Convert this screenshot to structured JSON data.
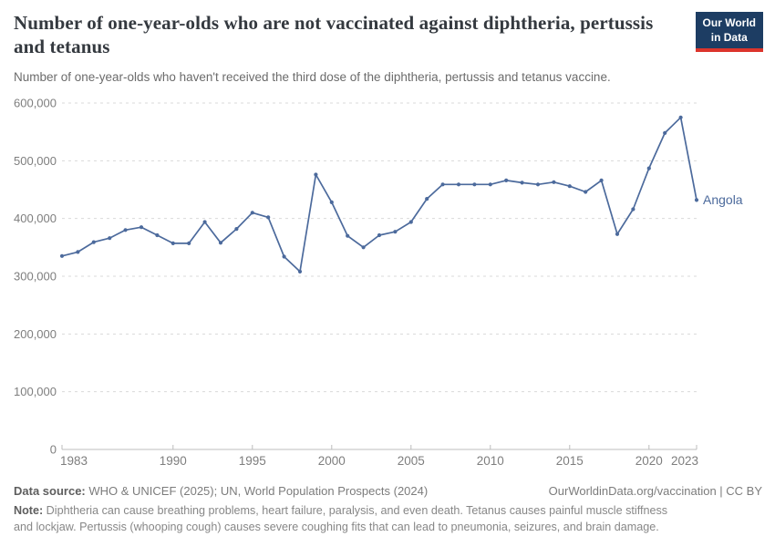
{
  "header": {
    "title": "Number of one-year-olds who are not vaccinated against diphtheria, pertussis and tetanus",
    "subtitle": "Number of one-year-olds who haven't received the third dose of the diphtheria, pertussis and tetanus vaccine."
  },
  "logo": {
    "line1": "Our World",
    "line2": "in Data",
    "bg_color": "#1d3d63",
    "accent_color": "#dc352c"
  },
  "chart_data": {
    "type": "line",
    "title": "Number of one-year-olds who are not vaccinated against diphtheria, pertussis and tetanus",
    "xlabel": "",
    "ylabel": "",
    "grid": true,
    "legend_position": "entity-label-right",
    "xlim": [
      1983,
      2023
    ],
    "ylim": [
      0,
      600000
    ],
    "x": [
      1983,
      1984,
      1985,
      1986,
      1987,
      1988,
      1989,
      1990,
      1991,
      1992,
      1993,
      1994,
      1995,
      1996,
      1997,
      1998,
      1999,
      2000,
      2001,
      2002,
      2003,
      2004,
      2005,
      2006,
      2007,
      2008,
      2009,
      2010,
      2011,
      2012,
      2013,
      2014,
      2015,
      2016,
      2017,
      2018,
      2019,
      2020,
      2021,
      2022,
      2023
    ],
    "series": [
      {
        "name": "Angola",
        "color": "#4c6a9c",
        "values": [
          335000,
          342000,
          359000,
          366000,
          380000,
          385000,
          371000,
          357000,
          357000,
          394000,
          358000,
          382000,
          410000,
          402000,
          334000,
          308000,
          476000,
          428000,
          370000,
          350000,
          371000,
          377000,
          394000,
          434000,
          459000,
          459000,
          459000,
          459000,
          466000,
          462000,
          459000,
          463000,
          456000,
          446000,
          466000,
          373000,
          416000,
          487000,
          548000,
          575000,
          432000
        ]
      }
    ],
    "yticks": [
      {
        "value": 0,
        "label": "0"
      },
      {
        "value": 100000,
        "label": "100,000"
      },
      {
        "value": 200000,
        "label": "200,000"
      },
      {
        "value": 300000,
        "label": "300,000"
      },
      {
        "value": 400000,
        "label": "400,000"
      },
      {
        "value": 500000,
        "label": "500,000"
      },
      {
        "value": 600000,
        "label": "600,000"
      }
    ],
    "xticks": [
      {
        "value": 1983,
        "label": "1983"
      },
      {
        "value": 1990,
        "label": "1990"
      },
      {
        "value": 1995,
        "label": "1995"
      },
      {
        "value": 2000,
        "label": "2000"
      },
      {
        "value": 2005,
        "label": "2005"
      },
      {
        "value": 2010,
        "label": "2010"
      },
      {
        "value": 2015,
        "label": "2015"
      },
      {
        "value": 2020,
        "label": "2020"
      },
      {
        "value": 2023,
        "label": "2023"
      }
    ],
    "colors": {
      "gridline": "#dadada",
      "axis": "#bcbcbc",
      "tick_label": "#7e7e7e"
    }
  },
  "footer": {
    "data_source_label": "Data source:",
    "data_source_text": " WHO & UNICEF (2025); UN, World Population Prospects (2024)",
    "link_text": "OurWorldinData.org/vaccination | CC BY",
    "note_label": "Note:",
    "note_text": " Diphtheria can cause breathing problems, heart failure, paralysis, and even death. Tetanus causes painful muscle stiffness and lockjaw. Pertussis (whooping cough) causes severe coughing fits that can lead to pneumonia, seizures, and brain damage."
  }
}
